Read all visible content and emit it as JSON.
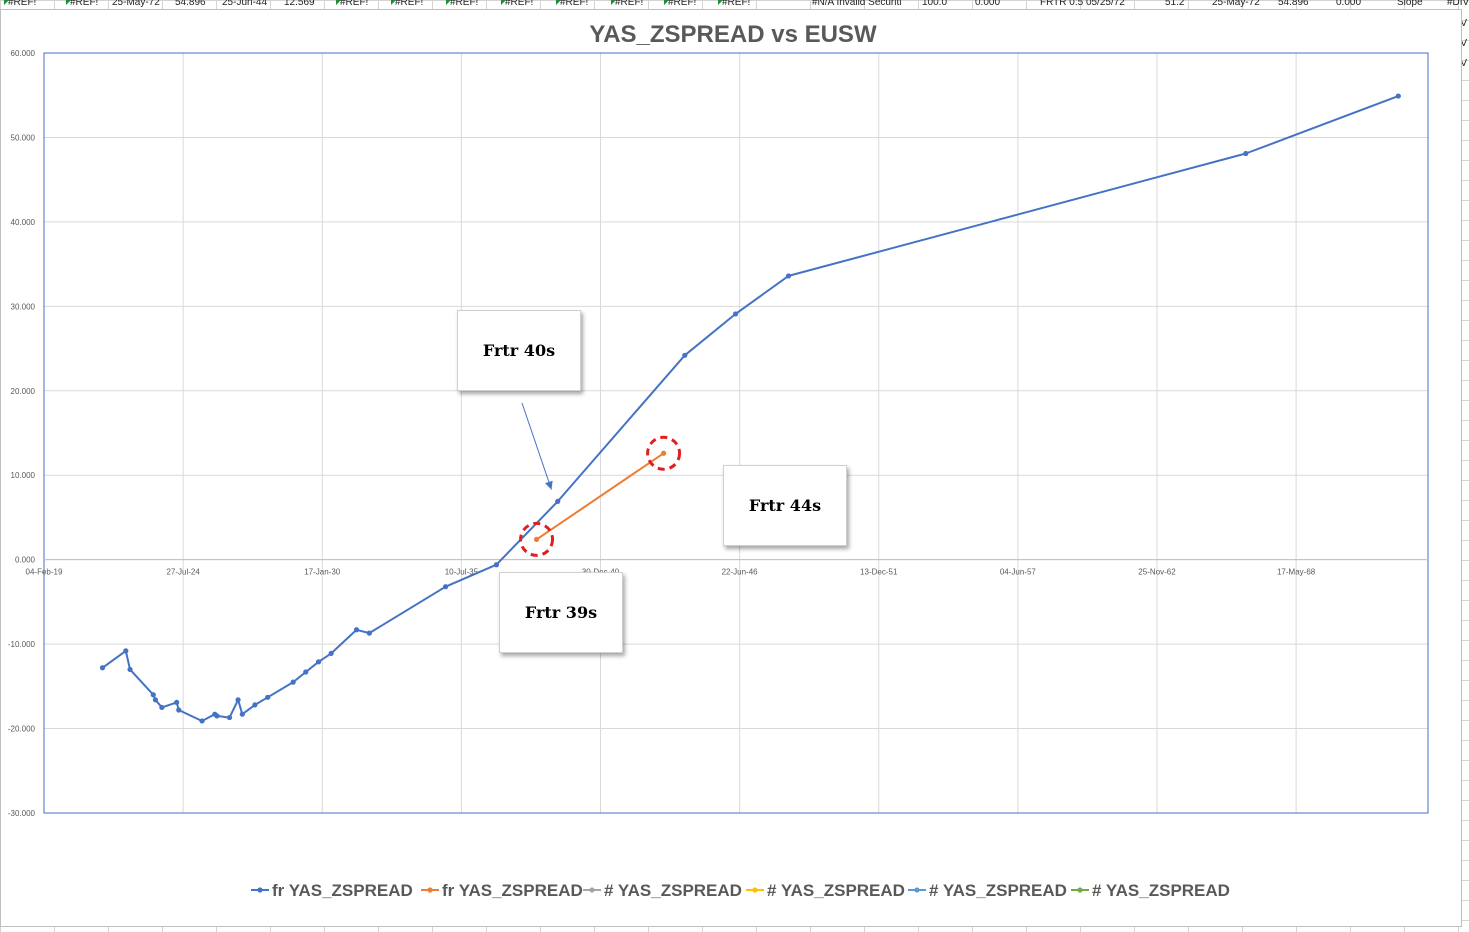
{
  "sheet": {
    "top_row_cells": [
      "#REF!",
      "#REF!",
      "25-May-72",
      "54.896",
      "25-Jun-44",
      "12.569",
      "#REF!",
      "#REF!",
      "#REF!",
      "#REF!",
      "#REF!",
      "#REF!",
      "#REF!",
      "#REF!",
      "#N/A Invalid Securiti",
      "100.0",
      "0.000",
      "FRTR 0.5 05/25/72",
      "51.2",
      "25-May-72",
      "54.896",
      "0.000",
      "Slope",
      "#DIV"
    ],
    "right_cells": [
      "V",
      "V",
      "V"
    ]
  },
  "chart": {
    "title": "YAS_ZSPREAD vs EUSW",
    "callouts": {
      "frtr40": "Frtr 40s",
      "frtr44": "Frtr 44s",
      "frtr39": "Frtr 39s"
    }
  },
  "chart_data": {
    "type": "line",
    "title": "YAS_ZSPREAD vs EUSW",
    "xlabel": "",
    "ylabel": "",
    "x_axis_type": "date",
    "xlim": [
      "2019-02-04",
      "2073-07-26"
    ],
    "ylim": [
      -30,
      60
    ],
    "y_ticks": [
      60,
      50,
      40,
      30,
      20,
      10,
      0,
      -10,
      -20,
      -30
    ],
    "y_tick_labels": [
      "60.000",
      "50.000",
      "40.000",
      "30.000",
      "20.000",
      "10.000",
      "0.000",
      "-10.000",
      "-20.000",
      "-30.000"
    ],
    "x_ticks": [
      "2019-02-04",
      "2024-07-27",
      "2030-01-17",
      "2035-07-10",
      "2040-12-30",
      "2046-06-22",
      "2051-12-13",
      "2057-06-04",
      "2062-11-25",
      "2068-05-17"
    ],
    "x_tick_labels": [
      "04-Feb-19",
      "27-Jul-24",
      "17-Jan-30",
      "10-Jul-35",
      "30-Dec-40",
      "22-Jun-46",
      "13-Dec-51",
      "04-Jun-57",
      "25-Nov-62",
      "17-May-68"
    ],
    "grid": true,
    "legend_position": "bottom",
    "legend": [
      "fr YAS_ZSPREAD",
      "fr YAS_ZSPREAD",
      "# YAS_ZSPREAD",
      "# YAS_ZSPREAD",
      "# YAS_ZSPREAD",
      "# YAS_ZSPREAD"
    ],
    "series": [
      {
        "name": "fr YAS_ZSPREAD",
        "color": "#4472c4",
        "points": [
          [
            "2021-05-25",
            -12.8
          ],
          [
            "2022-04-25",
            -10.8
          ],
          [
            "2022-06-25",
            -13.0
          ],
          [
            "2023-05-25",
            -16.0
          ],
          [
            "2023-06-25",
            -16.6
          ],
          [
            "2023-09-25",
            -17.5
          ],
          [
            "2024-04-25",
            -16.9
          ],
          [
            "2024-05-25",
            -17.8
          ],
          [
            "2025-04-25",
            -19.1
          ],
          [
            "2025-10-25",
            -18.3
          ],
          [
            "2025-11-25",
            -18.5
          ],
          [
            "2026-05-25",
            -18.7
          ],
          [
            "2026-09-25",
            -16.6
          ],
          [
            "2026-11-25",
            -18.3
          ],
          [
            "2027-05-25",
            -17.2
          ],
          [
            "2027-11-25",
            -16.3
          ],
          [
            "2028-11-25",
            -14.5
          ],
          [
            "2029-05-25",
            -13.3
          ],
          [
            "2029-11-25",
            -12.1
          ],
          [
            "2030-05-25",
            -11.1
          ],
          [
            "2031-05-25",
            -8.3
          ],
          [
            "2031-11-25",
            -8.7
          ],
          [
            "2034-11-25",
            -3.2
          ],
          [
            "2036-11-25",
            -0.6
          ],
          [
            "2039-04-25",
            6.9
          ],
          [
            "2044-04-25",
            24.2
          ],
          [
            "2046-04-25",
            29.1
          ],
          [
            "2048-05-25",
            33.6
          ],
          [
            "2066-05-25",
            48.1
          ],
          [
            "2072-05-25",
            54.9
          ]
        ]
      },
      {
        "name": "fr YAS_ZSPREAD",
        "color": "#ed7d31",
        "points": [
          [
            "2038-06-25",
            2.4
          ],
          [
            "2043-06-25",
            12.6
          ]
        ]
      },
      {
        "name": "# YAS_ZSPREAD",
        "color": "#a5a5a5",
        "points": []
      },
      {
        "name": "# YAS_ZSPREAD",
        "color": "#ffc000",
        "points": []
      },
      {
        "name": "# YAS_ZSPREAD",
        "color": "#5b9bd5",
        "points": []
      },
      {
        "name": "# YAS_ZSPREAD",
        "color": "#70ad47",
        "points": []
      }
    ],
    "annotations": [
      {
        "text": "Frtr 40s",
        "arrow_to": [
          "2039-01-25",
          8.3
        ]
      },
      {
        "text": "Frtr 44s",
        "circle_at": [
          "2043-06-25",
          12.6
        ]
      },
      {
        "text": "Frtr 39s",
        "circle_at": [
          "2038-06-25",
          2.4
        ]
      }
    ]
  }
}
